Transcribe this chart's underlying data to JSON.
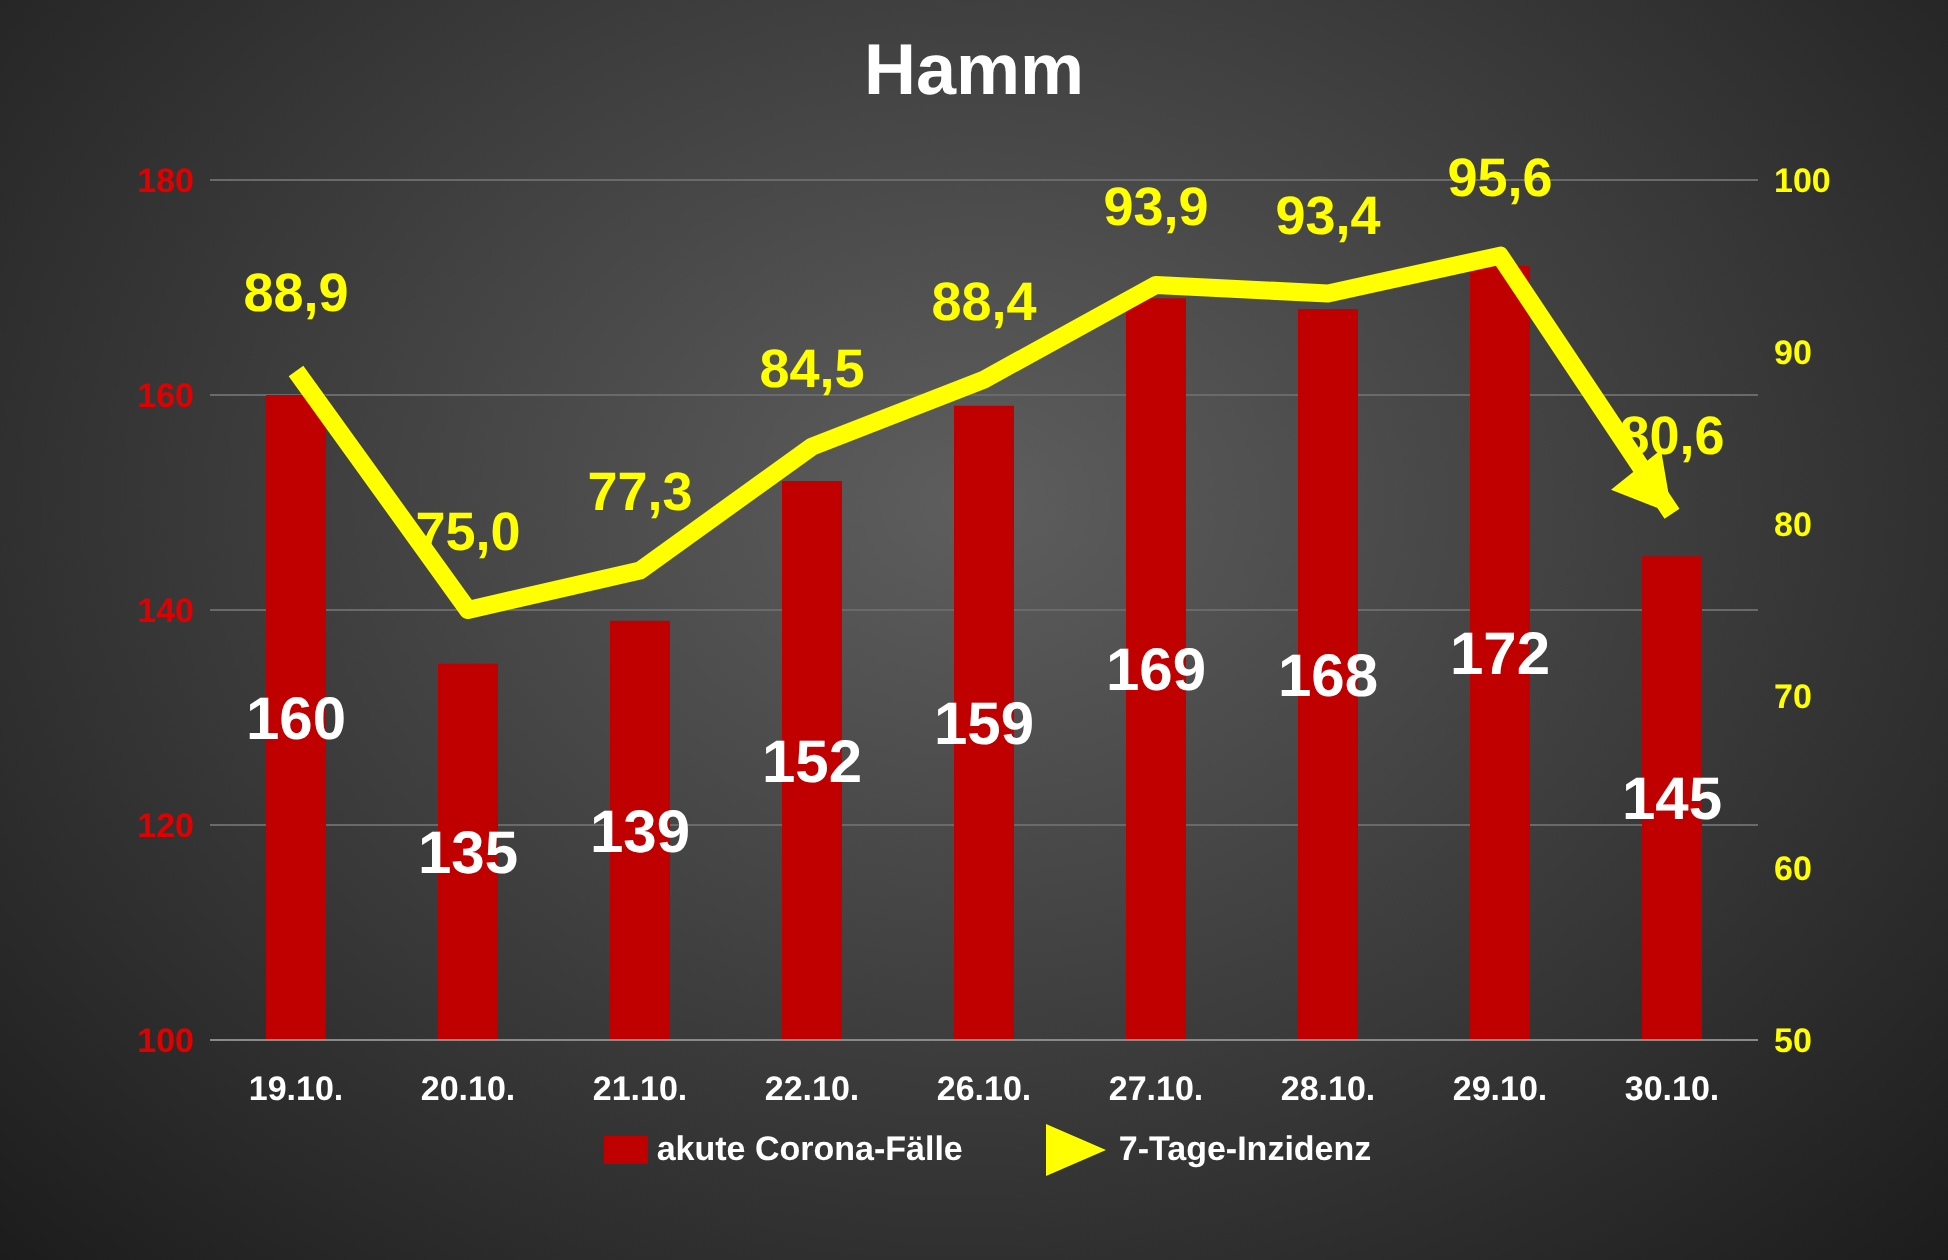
{
  "chart_data": {
    "type": "bar",
    "title": "Hamm",
    "categories": [
      "19.10.",
      "20.10.",
      "21.10.",
      "22.10.",
      "26.10.",
      "27.10.",
      "28.10.",
      "29.10.",
      "30.10."
    ],
    "series": [
      {
        "name": "akute Corona-Fälle",
        "color": "#c00000",
        "values": [
          160,
          135,
          139,
          152,
          159,
          169,
          168,
          172,
          145
        ],
        "value_labels": [
          "160",
          "135",
          "139",
          "152",
          "159",
          "169",
          "168",
          "172",
          "145"
        ]
      },
      {
        "name": "7-Tage-Inzidenz",
        "type": "line",
        "axis": "y2",
        "color": "#ffff00",
        "values": [
          88.9,
          75.0,
          77.3,
          84.5,
          88.4,
          93.9,
          93.4,
          95.6,
          80.6
        ],
        "value_labels": [
          "88,9",
          "75,0",
          "77,3",
          "84,5",
          "88,4",
          "93,9",
          "93,4",
          "95,6",
          "80,6"
        ]
      }
    ],
    "ylim": [
      100,
      180
    ],
    "yticks": [
      100,
      120,
      140,
      160,
      180
    ],
    "y2lim": [
      50,
      100
    ],
    "y2ticks": [
      50,
      60,
      70,
      80,
      90,
      100
    ],
    "grid": "y",
    "legend": "bottom",
    "marker": "none",
    "line_style": "solid"
  }
}
